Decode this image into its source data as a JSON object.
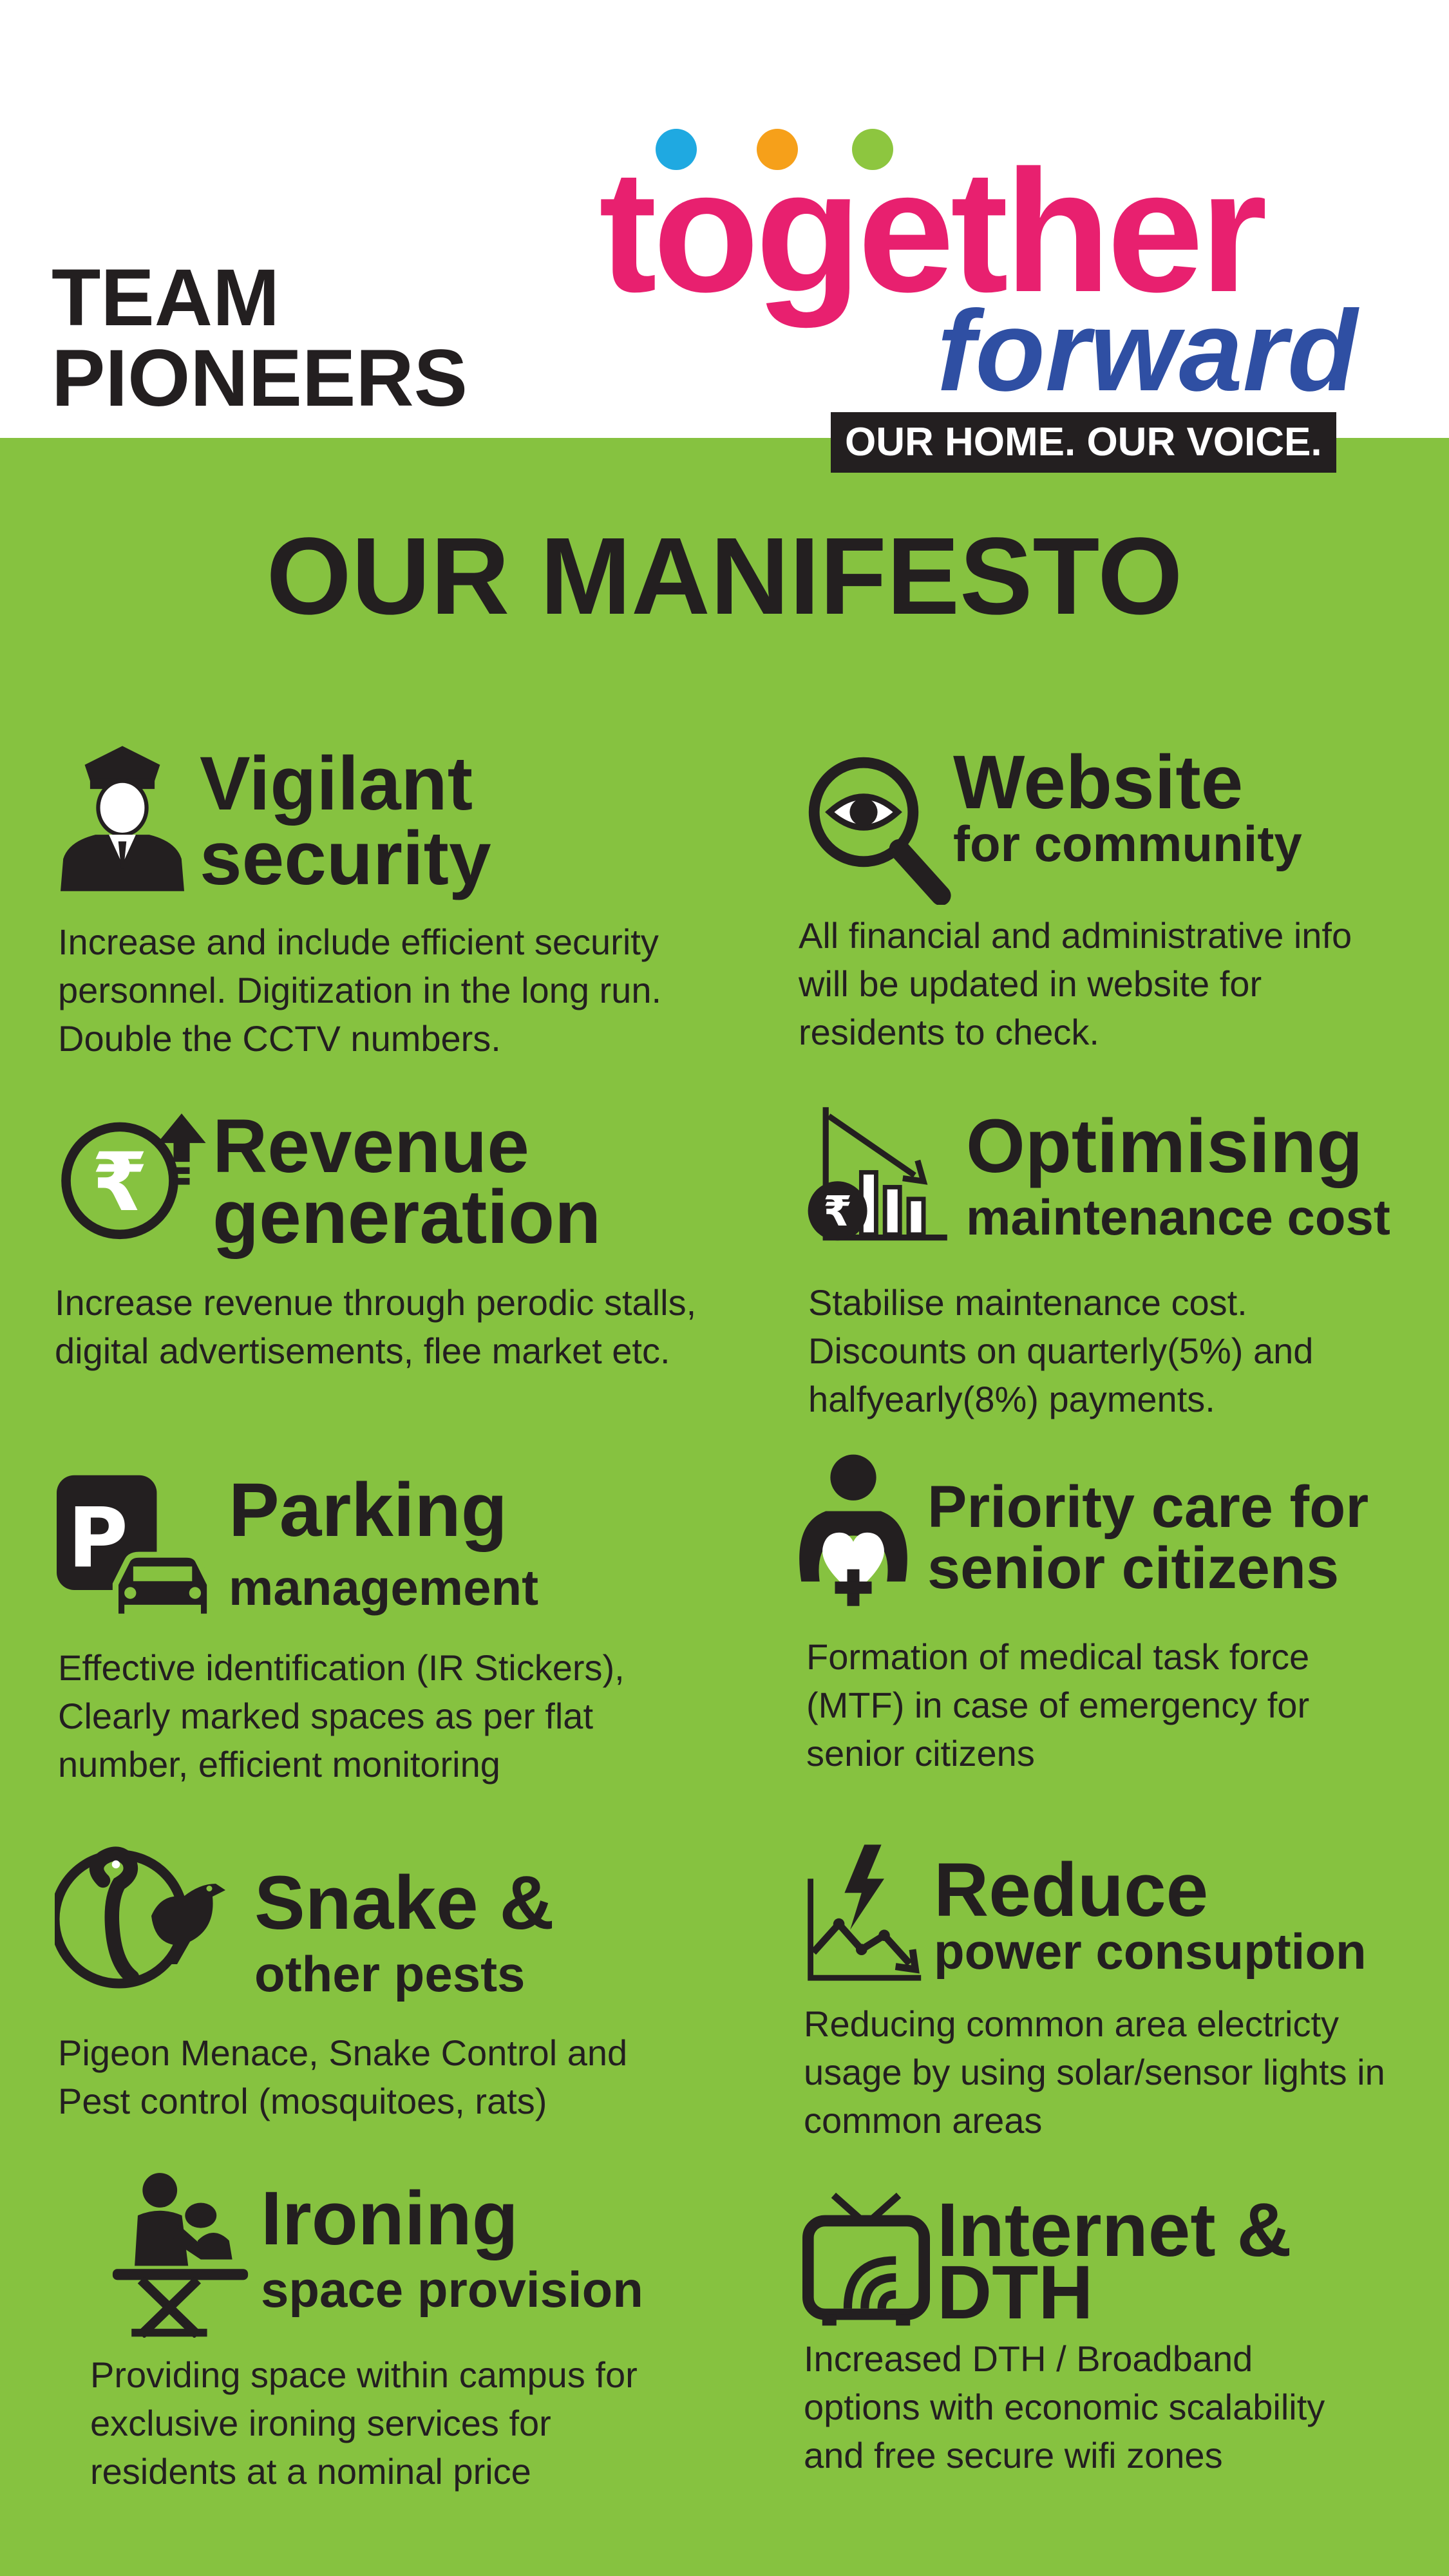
{
  "header": {
    "team": "TEAM\nPIONEERS",
    "logo": {
      "word": "together",
      "sub": "forward"
    },
    "tagline": "OUR HOME. OUR VOICE.",
    "logo_dot_colors": [
      "#1fa9e1",
      "#f6a01a",
      "#8dc63f"
    ]
  },
  "title": "OUR MANIFESTO",
  "items": [
    {
      "t1": "Vigilant",
      "t2": "security",
      "desc": "Increase and include efficient security\npersonnel. Digitization in the long run.\nDouble the CCTV numbers.",
      "icon": "security-guard-icon"
    },
    {
      "t1": "Website",
      "t2": "for community",
      "desc": "All financial and administrative info\nwill be updated in website for\nresidents to check.",
      "icon": "magnifier-eye-icon"
    },
    {
      "t1": "Revenue",
      "t2": "generation",
      "desc": "Increase revenue through perodic stalls,\ndigital advertisements, flee market etc.",
      "icon": "rupee-up-icon"
    },
    {
      "t1": "Optimising",
      "t2": "maintenance cost",
      "desc": "Stabilise maintenance cost.\nDiscounts on quarterly(5%) and\nhalfyearly(8%) payments.",
      "icon": "cost-chart-icon"
    },
    {
      "t1": "Parking",
      "t2": "management",
      "desc": "Effective identification (IR Stickers),\nClearly marked spaces as per flat\nnumber, efficient monitoring",
      "icon": "parking-car-icon"
    },
    {
      "t1": "Priority care for",
      "t2": "senior citizens",
      "desc": "Formation of medical task force\n(MTF) in case of emergency for\nsenior citizens",
      "icon": "care-person-icon"
    },
    {
      "t1": "Snake &",
      "t2": "other pests",
      "desc": "Pigeon Menace, Snake Control and\nPest control (mosquitoes, rats)",
      "icon": "snake-pigeon-icon"
    },
    {
      "t1": "Reduce",
      "t2": "power consuption",
      "desc": "Reducing common area electricty\nusage by using solar/sensor lights in\ncommon areas",
      "icon": "power-chart-icon"
    },
    {
      "t1": "Ironing",
      "t2": "space provision",
      "desc": "Providing space within campus for\nexclusive ironing services for\nresidents at a nominal price",
      "icon": "ironing-icon"
    },
    {
      "t1": "Internet &",
      "t2": "DTH",
      "desc": "Increased DTH / Broadband\noptions with economic scalability\nand free secure wifi zones",
      "icon": "tv-wifi-icon"
    }
  ]
}
